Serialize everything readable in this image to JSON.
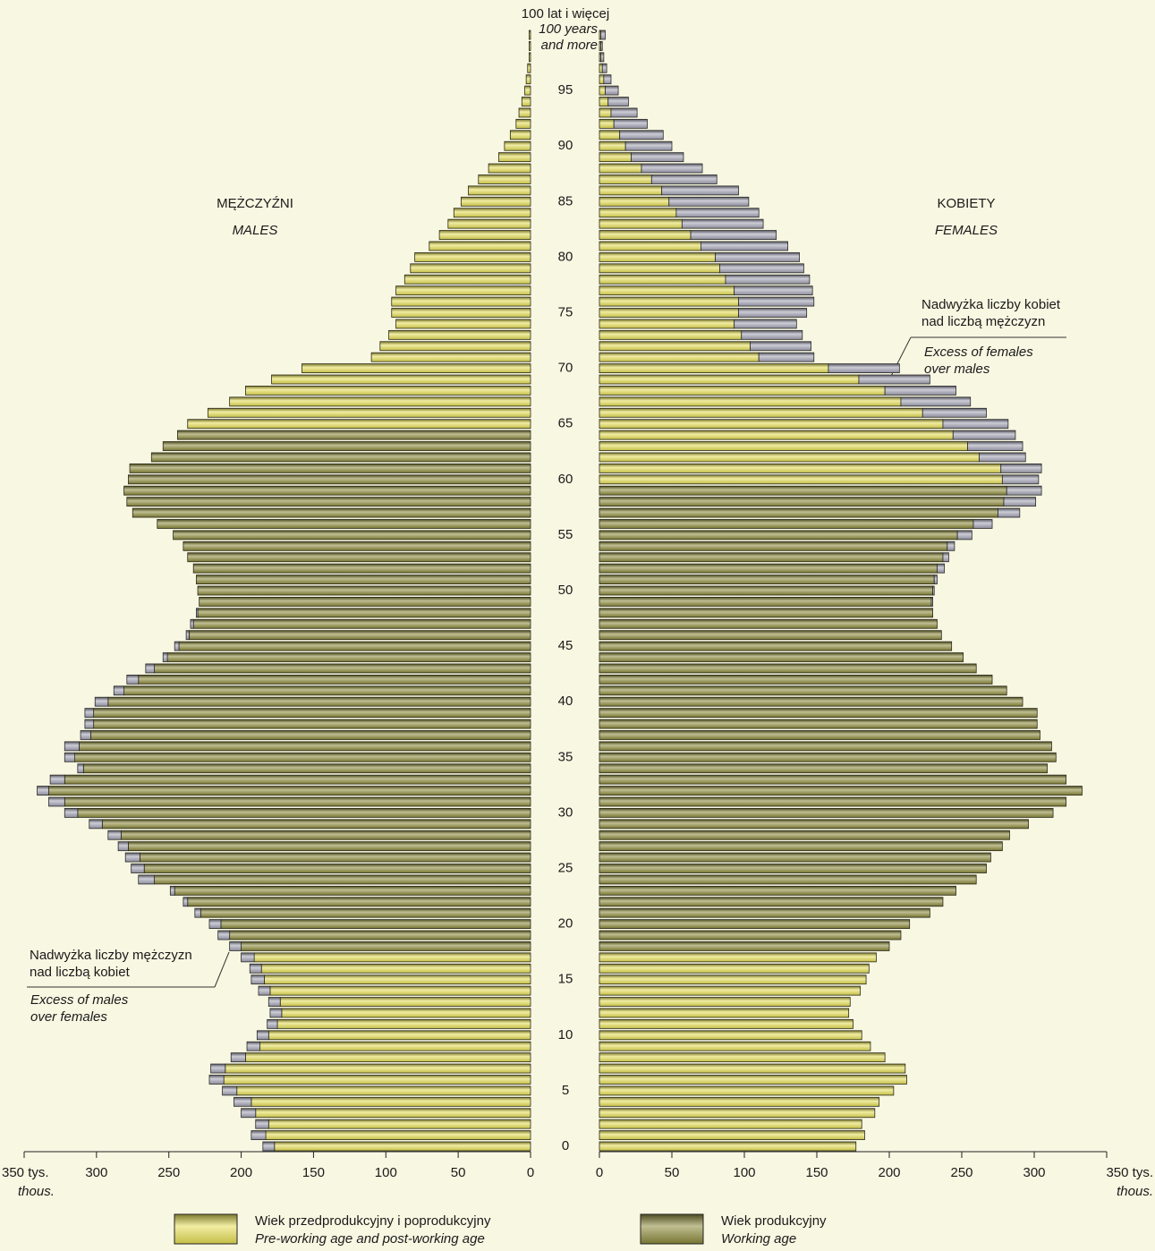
{
  "chart_data": {
    "type": "pyramid",
    "categories": [
      0,
      null,
      null,
      null,
      null,
      5,
      null,
      null,
      null,
      null,
      10,
      null,
      null,
      null,
      null,
      15,
      null,
      null,
      null,
      null,
      20,
      null,
      null,
      null,
      null,
      25,
      null,
      null,
      null,
      null,
      30,
      null,
      null,
      null,
      null,
      35,
      null,
      null,
      null,
      null,
      40,
      null,
      null,
      null,
      null,
      45,
      null,
      null,
      null,
      null,
      50,
      null,
      null,
      null,
      null,
      55,
      null,
      null,
      null,
      null,
      60,
      null,
      null,
      null,
      null,
      65,
      null,
      null,
      null,
      null,
      70,
      null,
      null,
      null,
      null,
      75,
      null,
      null,
      null,
      null,
      80,
      null,
      null,
      null,
      null,
      85,
      null,
      null,
      null,
      null,
      90,
      null,
      null,
      null,
      null,
      95,
      null,
      null,
      null,
      null,
      "100 lat i więcej"
    ],
    "category_last_en": "100 years and more",
    "xlim": [
      0,
      350
    ],
    "xticks": [
      0,
      50,
      100,
      150,
      200,
      250,
      300,
      {
        "value": 350,
        "label": "350 tys."
      }
    ],
    "xtick_unit_en": "thous.",
    "series": [
      {
        "name": "MĘŻCZYŹNI",
        "name_en": "MALES",
        "side": "left",
        "working_age": [
          18,
          64
        ],
        "values": [
          177,
          183,
          181,
          190,
          193,
          203,
          212,
          211,
          197,
          187,
          181,
          175,
          172,
          173,
          180,
          184,
          186,
          191,
          200,
          208,
          214,
          228,
          237,
          246,
          260,
          267,
          270,
          278,
          283,
          296,
          313,
          322,
          333,
          322,
          309,
          315,
          312,
          304,
          302,
          302,
          292,
          281,
          271,
          260,
          251,
          243,
          236,
          233,
          230,
          229,
          230,
          231,
          233,
          237,
          240,
          247,
          258,
          275,
          279,
          281,
          278,
          277,
          262,
          254,
          244,
          237,
          223,
          208,
          197,
          179,
          158,
          110,
          104,
          98,
          93,
          96,
          96,
          93,
          87,
          83,
          80,
          70,
          63,
          57,
          53,
          48,
          43,
          36,
          29,
          22,
          18,
          14,
          10,
          8,
          6,
          4,
          3,
          2,
          1,
          1,
          1
        ],
        "excess": [
          8,
          10,
          9,
          10,
          12,
          10,
          10,
          10,
          10,
          9,
          8,
          7,
          8,
          8,
          8,
          9,
          8,
          9,
          8,
          8,
          8,
          4,
          3,
          3,
          11,
          9,
          10,
          7,
          9,
          9,
          9,
          11,
          8,
          10,
          4,
          7,
          10,
          7,
          6,
          6,
          9,
          7,
          8,
          6,
          3,
          3,
          2,
          2,
          1,
          0,
          0,
          0,
          0,
          0,
          0,
          0,
          0,
          0,
          0,
          0,
          0,
          0,
          0,
          0,
          0,
          0,
          0,
          0,
          0,
          0,
          0,
          0,
          0,
          0,
          0,
          0,
          0,
          0,
          0,
          0,
          0,
          0,
          0,
          0,
          0,
          0,
          0,
          0,
          0,
          0,
          0,
          0,
          0,
          0,
          0,
          0,
          0,
          0,
          0,
          0,
          0
        ]
      },
      {
        "name": "KOBIETY",
        "name_en": "FEMALES",
        "side": "right",
        "working_age": [
          18,
          59
        ],
        "values": [
          177,
          183,
          181,
          190,
          193,
          203,
          212,
          211,
          197,
          187,
          181,
          175,
          172,
          173,
          180,
          184,
          186,
          191,
          200,
          208,
          214,
          228,
          237,
          246,
          260,
          267,
          270,
          278,
          283,
          296,
          313,
          322,
          333,
          322,
          309,
          315,
          312,
          304,
          302,
          302,
          292,
          281,
          271,
          260,
          251,
          243,
          236,
          233,
          230,
          229,
          230,
          231,
          233,
          237,
          240,
          247,
          258,
          275,
          279,
          281,
          278,
          277,
          262,
          254,
          244,
          237,
          223,
          208,
          197,
          179,
          158,
          110,
          104,
          98,
          93,
          96,
          96,
          93,
          87,
          83,
          80,
          70,
          63,
          57,
          53,
          48,
          43,
          36,
          29,
          22,
          18,
          14,
          10,
          8,
          6,
          4,
          3,
          2,
          1,
          1,
          1
        ],
        "excess": [
          0,
          0,
          0,
          0,
          0,
          0,
          0,
          0,
          0,
          0,
          0,
          0,
          0,
          0,
          0,
          0,
          0,
          0,
          0,
          0,
          0,
          0,
          0,
          0,
          0,
          0,
          0,
          0,
          0,
          0,
          0,
          0,
          0,
          0,
          0,
          0,
          0,
          0,
          0,
          0,
          0,
          0,
          0,
          0,
          0,
          0,
          0,
          0,
          0,
          1,
          1,
          2,
          5,
          4,
          5,
          10,
          13,
          15,
          22,
          24,
          25,
          28,
          32,
          38,
          43,
          45,
          44,
          48,
          49,
          49,
          49,
          38,
          42,
          42,
          43,
          47,
          52,
          54,
          58,
          58,
          58,
          60,
          59,
          56,
          57,
          55,
          53,
          45,
          42,
          36,
          32,
          30,
          23,
          18,
          14,
          9,
          5,
          3,
          2,
          1,
          3
        ]
      }
    ],
    "legend": [
      {
        "label": "Wiek przedprodukcyjny i poprodukcyjny",
        "label_en": "Pre-working age and post-working age",
        "color": "#e6df55"
      },
      {
        "label": "Wiek produkcyjny",
        "label_en": "Working age",
        "color": "#8c8a3a"
      }
    ],
    "excess_color": "#a4a4b6",
    "annotations": [
      {
        "side": "right",
        "text": "Nadwyżka liczby kobiet nad liczbą mężczyzn",
        "text_en": "Excess of females over males"
      },
      {
        "side": "left",
        "text": "Nadwyżka liczby mężczyzn nad liczbą kobiet",
        "text_en": "Excess of males over females"
      }
    ]
  }
}
